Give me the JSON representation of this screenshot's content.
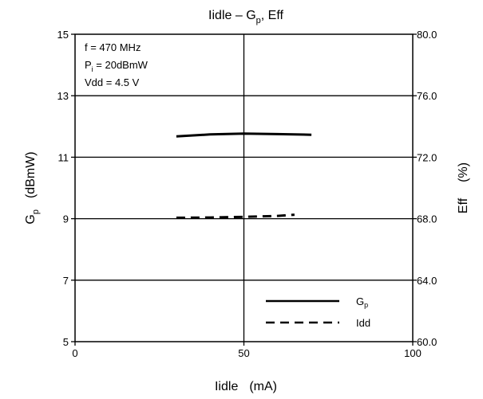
{
  "chart_data": {
    "type": "line",
    "title": {
      "main": "Iidle – G",
      "sub": "p",
      "tail": ", Eff"
    },
    "xlabel": {
      "main": "Iidle",
      "unit": "(mA)"
    },
    "ylabel_left": {
      "main": "G",
      "sub": "p",
      "unit": "(dBmW)"
    },
    "ylabel_right": {
      "main": "Eff",
      "unit": "(%)"
    },
    "x_range": [
      0,
      100
    ],
    "y_left_range": [
      5,
      15
    ],
    "y_right_range": [
      60.0,
      80.0
    ],
    "x_ticks": [
      "0",
      "50",
      "100"
    ],
    "y_left_ticks": [
      "5",
      "7",
      "9",
      "11",
      "13",
      "15"
    ],
    "y_right_ticks": [
      "60.0",
      "64.0",
      "68.0",
      "72.0",
      "76.0",
      "80.0"
    ],
    "grid": true,
    "conditions": [
      {
        "main": "f = 470 MHz"
      },
      {
        "main": "P",
        "sub": "i",
        "tail": " = 20dBmW"
      },
      {
        "main": "Vdd = 4.5 V"
      }
    ],
    "legend": {
      "placement": "bottom-right",
      "entries": [
        {
          "main": "G",
          "sub": "p",
          "style": "solid"
        },
        {
          "main": "Idd",
          "sub": "",
          "style": "dashed"
        }
      ]
    },
    "series": [
      {
        "style": "solid",
        "axis": "left",
        "x": [
          30,
          40,
          50,
          60,
          70
        ],
        "y": [
          11.68,
          11.74,
          11.77,
          11.75,
          11.73
        ]
      },
      {
        "style": "dashed",
        "axis": "left",
        "x": [
          30,
          40,
          50,
          60,
          65
        ],
        "y": [
          9.03,
          9.04,
          9.06,
          9.09,
          9.13
        ]
      }
    ]
  }
}
